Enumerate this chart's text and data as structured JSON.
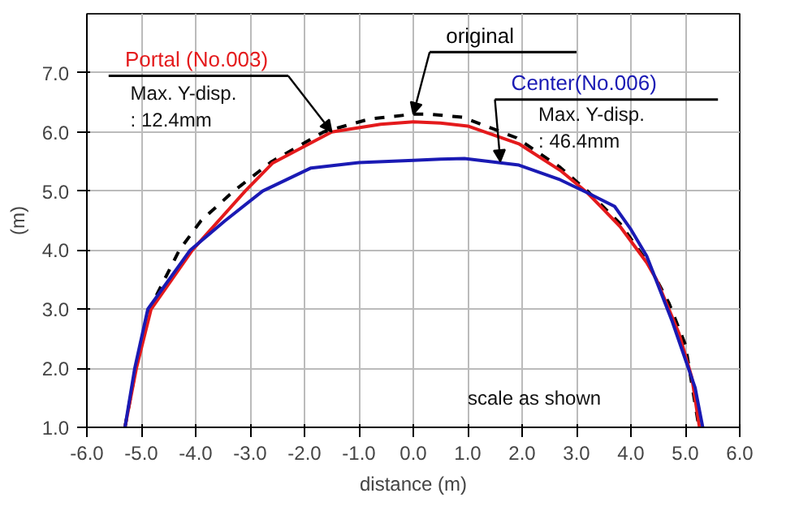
{
  "chart_data": {
    "type": "line",
    "xlabel": "distance (m)",
    "ylabel": "(m)",
    "xlim": [
      -6,
      6
    ],
    "ylim": [
      1,
      8
    ],
    "xticks": [
      {
        "value": -6,
        "label": "-6.0"
      },
      {
        "value": -5,
        "label": "-5.0"
      },
      {
        "value": -4,
        "label": "-4.0"
      },
      {
        "value": -3,
        "label": "-3.0"
      },
      {
        "value": -2,
        "label": "-2.0"
      },
      {
        "value": -1,
        "label": "-1.0"
      },
      {
        "value": 0,
        "label": "0.0"
      },
      {
        "value": 1,
        "label": "1.0"
      },
      {
        "value": 2,
        "label": "2.0"
      },
      {
        "value": 3,
        "label": "3.0"
      },
      {
        "value": 4,
        "label": "4.0"
      },
      {
        "value": 5,
        "label": "5.0"
      },
      {
        "value": 6,
        "label": "6.0"
      }
    ],
    "yticks": [
      {
        "value": 1,
        "label": "1.0"
      },
      {
        "value": 2,
        "label": "2.0"
      },
      {
        "value": 3,
        "label": "3.0"
      },
      {
        "value": 4,
        "label": "4.0"
      },
      {
        "value": 5,
        "label": "5.0"
      },
      {
        "value": 6,
        "label": "6.0"
      },
      {
        "value": 7,
        "label": "7.0"
      }
    ],
    "grid": true,
    "series": [
      {
        "name": "original",
        "color": "#000000",
        "line_style": "dashed",
        "x": [
          -5.3,
          -5.1,
          -4.85,
          -4.3,
          -3.9,
          -3.3,
          -2.6,
          -1.65,
          -0.8,
          0.0,
          0.3,
          0.9,
          1.9,
          2.7,
          3.2,
          3.8,
          4.3,
          4.7,
          5.0,
          5.25
        ],
        "values": [
          1.0,
          2.0,
          3.0,
          4.0,
          4.5,
          5.0,
          5.5,
          6.0,
          6.22,
          6.3,
          6.3,
          6.25,
          5.9,
          5.4,
          5.0,
          4.45,
          3.8,
          3.1,
          2.4,
          1.0
        ]
      },
      {
        "name": "Portal (No.003)",
        "color": "#e41a1c",
        "line_style": "solid",
        "x": [
          -5.3,
          -5.09,
          -4.82,
          -4.06,
          -3.09,
          -2.59,
          -1.5,
          -0.6,
          0.0,
          0.5,
          1.0,
          1.94,
          2.7,
          3.2,
          3.8,
          4.29,
          4.47,
          4.88,
          5.12,
          5.26
        ],
        "values": [
          1.0,
          2.0,
          3.0,
          4.0,
          5.0,
          5.47,
          6.0,
          6.13,
          6.17,
          6.15,
          6.1,
          5.8,
          5.35,
          4.97,
          4.4,
          3.79,
          3.5,
          2.6,
          1.84,
          1.0
        ]
      },
      {
        "name": "Center(No.006)",
        "color": "#1a1ab4",
        "line_style": "solid",
        "x": [
          -5.3,
          -5.12,
          -4.88,
          -4.1,
          -3.47,
          -2.77,
          -1.88,
          -1.0,
          0.0,
          0.5,
          0.94,
          1.94,
          2.7,
          3.2,
          3.7,
          4.0,
          4.29,
          4.76,
          5.18,
          5.32
        ],
        "values": [
          1.0,
          2.0,
          3.0,
          4.0,
          4.49,
          5.0,
          5.39,
          5.48,
          5.52,
          5.54,
          5.55,
          5.44,
          5.19,
          4.97,
          4.74,
          4.35,
          3.9,
          2.79,
          1.67,
          1.0
        ]
      }
    ],
    "annotations": [
      "Max. Y-disp.\n: 12.4mm",
      {
        "text": "Max. Y-disp.\n: 46.4mm",
        "x": 1.6,
        "y": 5.5
      },
      "scale as shown"
    ]
  }
}
